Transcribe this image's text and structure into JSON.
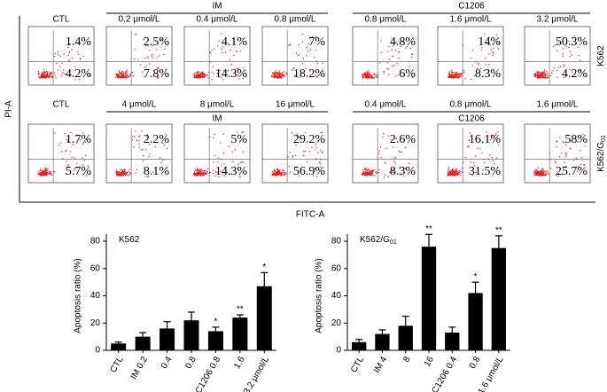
{
  "flow": {
    "y_label": "PI-A",
    "x_label": "FITC-A",
    "rows": [
      {
        "label": "K562",
        "label_sub": null,
        "control": {
          "label": "CTL",
          "upper": "1.4%",
          "lower": "4.2%"
        },
        "groups": [
          {
            "name": "IM",
            "panels": [
              {
                "label": "0.2 μmol/L",
                "upper": "2.5%",
                "lower": "7.8%"
              },
              {
                "label": "0.4 μmol/L",
                "upper": "4.1%",
                "lower": "14.3%"
              },
              {
                "label": "0.8 μmol/L",
                "upper": "7%",
                "lower": "18.2%"
              }
            ]
          },
          {
            "name": "C1206",
            "panels": [
              {
                "label": "0.8 μmol/L",
                "upper": "4.8%",
                "lower": "6%"
              },
              {
                "label": "1.6 μmol/L",
                "upper": "14%",
                "lower": "8.3%"
              },
              {
                "label": "3.2 μmol/L",
                "upper": "50.3%",
                "lower": "4.2%"
              }
            ]
          }
        ]
      },
      {
        "label": "K562/G",
        "label_sub": "01",
        "control": {
          "label": "CTL",
          "upper": "1.7%",
          "lower": "5.7%"
        },
        "groups": [
          {
            "name": "IM",
            "panels": [
              {
                "label": "4 μmol/L",
                "upper": "2.2%",
                "lower": "8.1%"
              },
              {
                "label": "8 μmol/L",
                "upper": "5%",
                "lower": "14.3%"
              },
              {
                "label": "16 μmol/L",
                "upper": "29.2%",
                "lower": "56.9%"
              }
            ]
          },
          {
            "name": "C1206",
            "panels": [
              {
                "label": "0.4 μmol/L",
                "upper": "2.6%",
                "lower": "8.3%"
              },
              {
                "label": "0.8 μmol/L",
                "upper": "16.1%",
                "lower": "31.5%"
              },
              {
                "label": "1.6 μmol/L",
                "upper": "58%",
                "lower": "25.7%"
              }
            ]
          }
        ]
      }
    ]
  },
  "chart_data": [
    {
      "type": "bar",
      "title": "K562",
      "title_sub": null,
      "y_label": "Apoptosis ratio (%)",
      "color": "#000000",
      "categories": [
        "CTL",
        "IM 0.2",
        "0.4",
        "0.8",
        "C1206 0.8",
        "1.6",
        "3.2 μmol/L"
      ],
      "values": [
        5,
        10,
        16,
        22,
        14,
        24,
        47
      ],
      "errors": [
        1,
        3,
        5,
        6,
        3,
        2,
        10
      ],
      "annotations": [
        null,
        null,
        null,
        null,
        "*",
        "**",
        "*"
      ],
      "ylim": [
        0,
        80
      ],
      "yticks": [
        0,
        20,
        40,
        60,
        80
      ]
    },
    {
      "type": "bar",
      "title": "K562/G",
      "title_sub": "01",
      "y_label": "Apoptosis ratio (%)",
      "color": "#000000",
      "categories": [
        "CTL",
        "IM 4",
        "8",
        "16",
        "C1206 0.4",
        "0.8",
        "1.6 μmol/L"
      ],
      "values": [
        6,
        12,
        18,
        76,
        13,
        42,
        75
      ],
      "errors": [
        2,
        3,
        7,
        9,
        4,
        8,
        9
      ],
      "annotations": [
        null,
        null,
        null,
        "**",
        null,
        "*",
        "**"
      ],
      "ylim": [
        0,
        80
      ],
      "yticks": [
        0,
        20,
        40,
        60,
        80
      ]
    }
  ]
}
